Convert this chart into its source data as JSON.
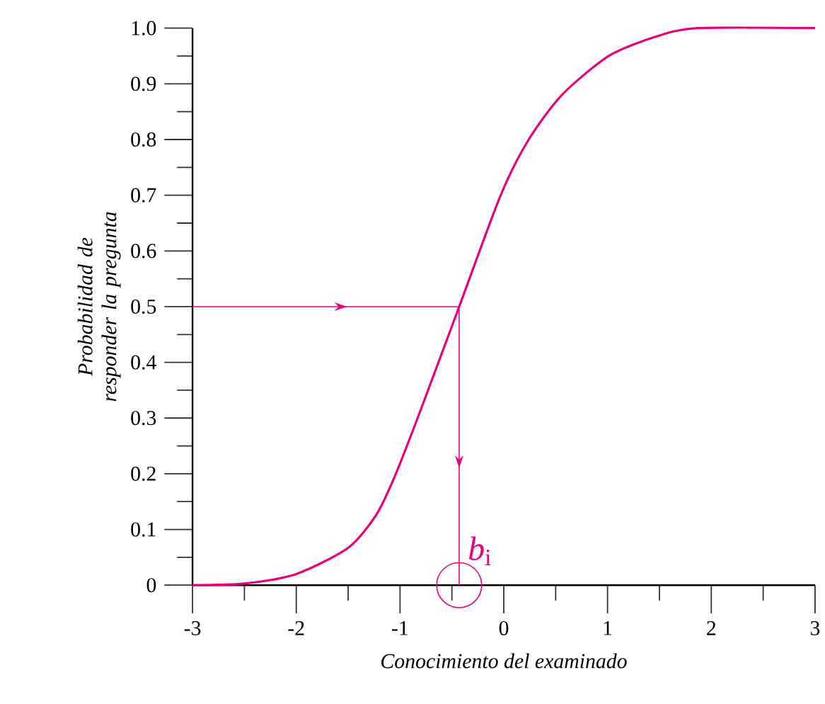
{
  "chart_data": {
    "type": "line",
    "xlabel": "Conocimiento del examinado",
    "ylabel": "Probabilidad de responder la pregunta",
    "series": [
      {
        "color": "#e6007e",
        "x": [
          -3,
          -2.5,
          -2.0,
          -1.5,
          -1.23,
          -1.04,
          -0.79,
          -0.43,
          -0.03,
          0.24,
          0.56,
          1.01,
          1.47,
          1.87,
          3
        ],
        "values": [
          0,
          0.003,
          0.02,
          0.067,
          0.126,
          0.2,
          0.32,
          0.5,
          0.7,
          0.8,
          0.88,
          0.95,
          0.985,
          1.0,
          1.0
        ]
      }
    ],
    "xlim": [
      -3,
      3
    ],
    "ylim": [
      0,
      1
    ],
    "xticks": [
      -3,
      -2,
      -1,
      0,
      1,
      2,
      3
    ],
    "yticks": [
      0,
      0.1,
      0.2,
      0.3,
      0.4,
      0.5,
      0.6,
      0.7,
      0.8,
      0.9,
      {
        "value": 1,
        "label": "1.0"
      }
    ],
    "ref_lines": [
      {
        "axis": "y",
        "value": 0.5,
        "color": "#e6007e"
      },
      {
        "axis": "x",
        "value": -0.43,
        "label": "*b*$_{i}$",
        "color": "#e6007e"
      }
    ],
    "marker": "none",
    "line_style": "solid"
  }
}
